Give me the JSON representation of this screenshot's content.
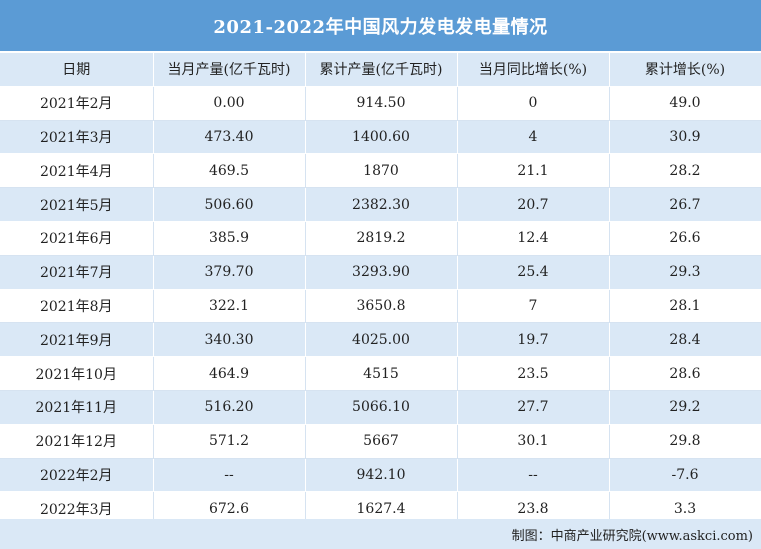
{
  "title": "2021-2022年中国风力发电发电量情况",
  "chart_data": {
    "type": "table",
    "title": "2021-2022年中国风力发电发电量情况",
    "columns": [
      "日期",
      "当月产量(亿千瓦时)",
      "累计产量(亿千瓦时)",
      "当月同比增长(%)",
      "累计增长(%)"
    ],
    "rows": [
      [
        "2021年2月",
        "0.00",
        "914.50",
        "0",
        "49.0"
      ],
      [
        "2021年3月",
        "473.40",
        "1400.60",
        "4",
        "30.9"
      ],
      [
        "2021年4月",
        "469.5",
        "1870",
        "21.1",
        "28.2"
      ],
      [
        "2021年5月",
        "506.60",
        "2382.30",
        "20.7",
        "26.7"
      ],
      [
        "2021年6月",
        "385.9",
        "2819.2",
        "12.4",
        "26.6"
      ],
      [
        "2021年7月",
        "379.70",
        "3293.90",
        "25.4",
        "29.3"
      ],
      [
        "2021年8月",
        "322.1",
        "3650.8",
        "7",
        "28.1"
      ],
      [
        "2021年9月",
        "340.30",
        "4025.00",
        "19.7",
        "28.4"
      ],
      [
        "2021年10月",
        "464.9",
        "4515",
        "23.5",
        "28.6"
      ],
      [
        "2021年11月",
        "516.20",
        "5066.10",
        "27.7",
        "29.2"
      ],
      [
        "2021年12月",
        "571.2",
        "5667",
        "30.1",
        "29.8"
      ],
      [
        "2022年2月",
        "--",
        "942.10",
        "--",
        "-7.6"
      ],
      [
        "2022年3月",
        "672.6",
        "1627.4",
        "23.8",
        "3.3"
      ]
    ]
  },
  "footer": {
    "source": "制图：中商产业研究院(www.askci.com)"
  },
  "colors": {
    "header_bar": "#5b9bd5",
    "stripe": "#dae8f6"
  }
}
